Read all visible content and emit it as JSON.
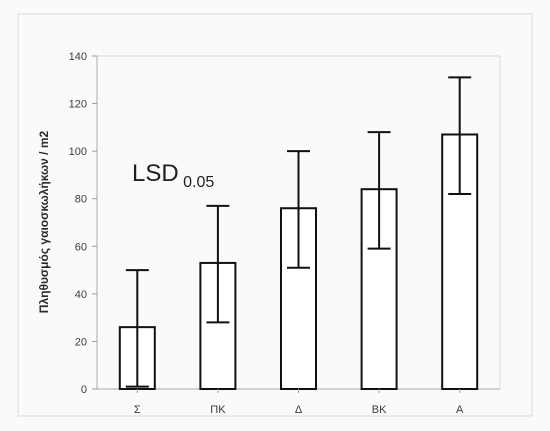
{
  "chart_data": {
    "type": "bar",
    "title": "",
    "xlabel": "",
    "ylabel": "Πληθυσμός γαιοσκωλήκων / m2",
    "categories": [
      "Σ",
      "ΠΚ",
      "Δ",
      "ΒΚ",
      "Α"
    ],
    "values": [
      26,
      53,
      76,
      84,
      107
    ],
    "error_low": [
      1,
      28,
      51,
      59,
      82
    ],
    "error_high": [
      50,
      77,
      100,
      108,
      131
    ],
    "ylim": [
      0,
      140
    ],
    "yticks": [
      0,
      20,
      40,
      60,
      80,
      100,
      120,
      140
    ],
    "grid": false,
    "bar_fill": "#ffffff",
    "bar_stroke": "#111111",
    "annotation": {
      "text": "LSD",
      "subscript": "0.05"
    }
  }
}
